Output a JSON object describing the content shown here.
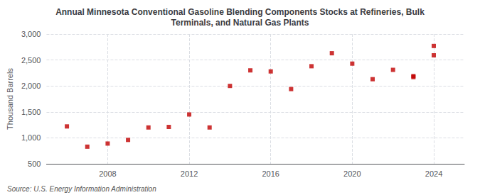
{
  "chart_data": {
    "type": "scatter",
    "title": "Annual Minnesota Conventional Gasoline Blending Components Stocks at Refineries, Bulk\nTerminals, and Natural Gas Plants",
    "y_label": "Thousand Barrels",
    "annotation": "Source: U.S. Energy Information Administration",
    "series": [
      {
        "x": [
          2006,
          2007,
          2008,
          2009,
          2010,
          2011,
          2012,
          2013,
          2014,
          2015,
          2016,
          2017,
          2018,
          2019,
          2020,
          2021,
          2022,
          2023,
          2024
        ],
        "values": [
          1220,
          830,
          890,
          960,
          1200,
          1210,
          1450,
          1200,
          2000,
          2300,
          2280,
          1940,
          2380,
          2630,
          2430,
          2130,
          2310,
          2190,
          2770
        ],
        "color": "#c00000",
        "marker": "square"
      },
      {
        "x": [
          2023,
          2024
        ],
        "values": [
          2170,
          2590
        ],
        "color": "#c00000",
        "marker": "square"
      }
    ],
    "xlim": [
      2005.0,
      2025.5
    ],
    "xticks": [
      2008,
      2012,
      2016,
      2020,
      2024
    ],
    "ylim": [
      500,
      3000
    ],
    "yticks": [
      500,
      {
        "value": 1000,
        "label": "1,000"
      },
      {
        "value": 1500,
        "label": "1,500"
      },
      {
        "value": 2000,
        "label": "2,000"
      },
      {
        "value": 2500,
        "label": "2,500"
      },
      {
        "value": 3000,
        "label": "3,000"
      }
    ],
    "grid": true
  }
}
